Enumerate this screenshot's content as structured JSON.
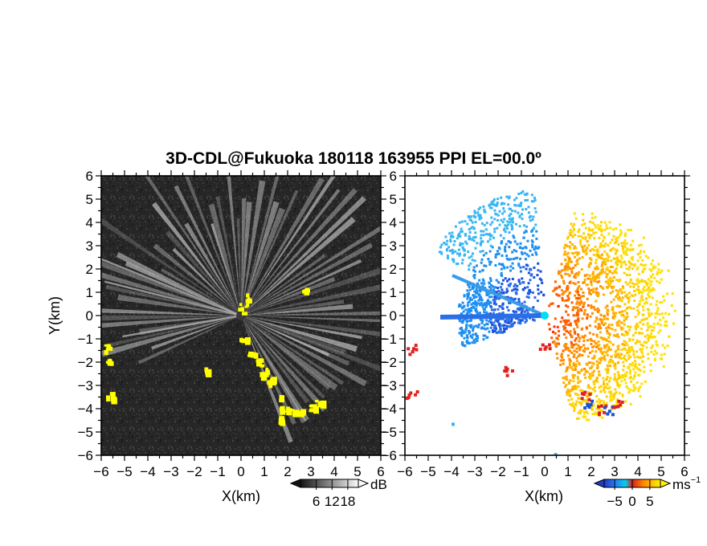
{
  "chart_data": [
    {
      "type": "heatmap",
      "title": "3D-CDL@Fukuoka 180118 163955 PPI EL=00.0º",
      "xlabel": "X(km)",
      "ylabel": "Y(km)",
      "xlim": [
        -6,
        6
      ],
      "ylim": [
        -6,
        6
      ],
      "xticks": [
        -6,
        -5,
        -4,
        -3,
        -2,
        -1,
        0,
        1,
        2,
        3,
        4,
        5,
        6
      ],
      "yticks": [
        6,
        5,
        4,
        3,
        2,
        1,
        0,
        -1,
        -2,
        -3,
        -4,
        -5,
        -6
      ],
      "xtick_labels": [
        "−6",
        "−5",
        "−4",
        "−3",
        "−2",
        "−1",
        "0",
        "1",
        "2",
        "3",
        "4",
        "5",
        "6"
      ],
      "ytick_labels": [
        "6",
        "5",
        "4",
        "3",
        "2",
        "1",
        "0",
        "−1",
        "−2",
        "−3",
        "−4",
        "−5",
        "−6"
      ],
      "quantity": "received signal intensity",
      "colormap": "grayscale",
      "colorbar": {
        "ticks": [
          6,
          12,
          18
        ],
        "unit": "dB",
        "range": [
          0,
          22
        ]
      },
      "highlight_color": "#ffff00"
    },
    {
      "type": "heatmap",
      "xlabel": "X(km)",
      "xlim": [
        -6,
        6
      ],
      "ylim": [
        -6,
        6
      ],
      "xticks": [
        -6,
        -5,
        -4,
        -3,
        -2,
        -1,
        0,
        1,
        2,
        3,
        4,
        5,
        6
      ],
      "yticks": [
        6,
        5,
        4,
        3,
        2,
        1,
        0,
        -1,
        -2,
        -3,
        -4,
        -5,
        -6
      ],
      "xtick_labels": [
        "−6",
        "−5",
        "−4",
        "−3",
        "−2",
        "−1",
        "0",
        "1",
        "2",
        "3",
        "4",
        "5",
        "6"
      ],
      "ytick_labels": [
        "6",
        "5",
        "4",
        "3",
        "2",
        "1",
        "0",
        "−1",
        "−2",
        "−3",
        "−4",
        "−5",
        "−6"
      ],
      "quantity": "Doppler velocity",
      "colormap": "blue-cyan-red-orange-yellow",
      "colorbar": {
        "ticks": [
          -5,
          0,
          5
        ],
        "tick_labels": [
          "−5",
          "0",
          "5"
        ],
        "unit": "ms",
        "unit_exponent": "−1",
        "range": [
          -8,
          8
        ]
      },
      "colors": {
        "negative": "#1a4fd8",
        "near_zero": "#00e0f0",
        "positive": "#ff3a00",
        "high": "#ffe000"
      }
    }
  ]
}
